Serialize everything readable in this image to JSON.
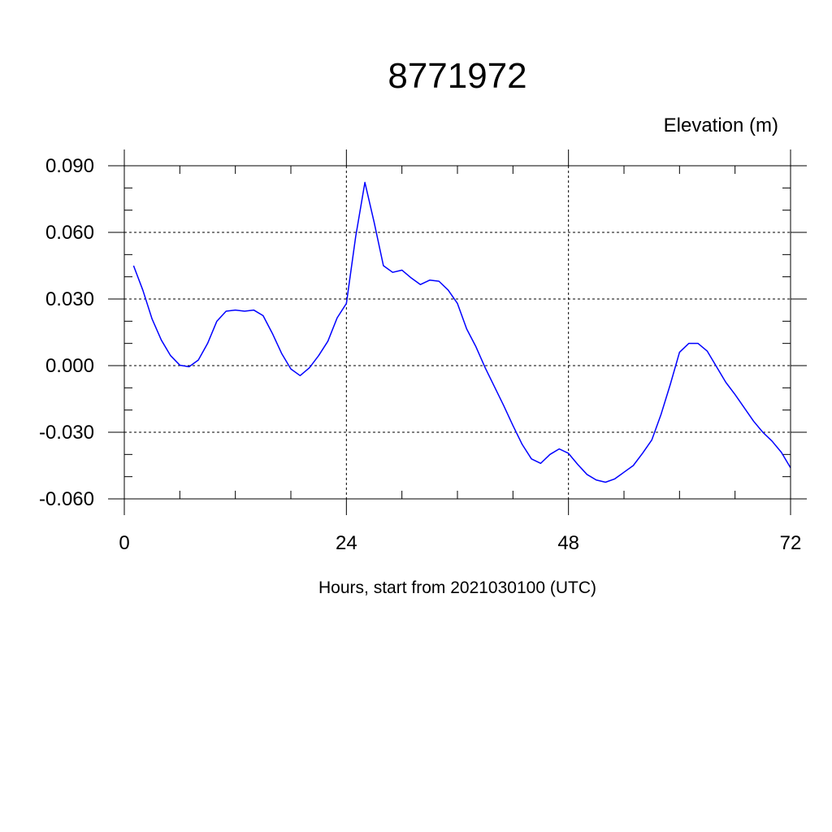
{
  "chart_data": {
    "type": "line",
    "title": "8771972",
    "ylabel": "Elevation (m)",
    "xlabel": "Hours, start from 2021030100 (UTC)",
    "xlim": [
      0,
      72
    ],
    "ylim": [
      -0.06,
      0.09
    ],
    "x_ticks": [
      0,
      24,
      48,
      72
    ],
    "x_tick_labels": [
      "0",
      "24",
      "48",
      "72"
    ],
    "y_ticks": [
      -0.06,
      -0.03,
      0,
      0.03,
      0.06,
      0.09
    ],
    "y_tick_labels": [
      "-0.060",
      "-0.030",
      "0.000",
      "0.030",
      "0.060",
      "0.090"
    ],
    "grid": true,
    "series": [
      {
        "color": "#0000ff",
        "x": [
          1,
          2,
          3,
          4,
          5,
          6,
          7,
          8,
          9,
          10,
          11,
          12,
          13,
          14,
          15,
          16,
          17,
          18,
          19,
          20,
          21,
          22,
          23,
          24,
          25,
          26,
          27,
          28,
          29,
          30,
          31,
          32,
          33,
          34,
          35,
          36,
          37,
          38,
          39,
          40,
          41,
          42,
          43,
          44,
          45,
          46,
          47,
          48,
          49,
          50,
          51,
          52,
          53,
          54,
          55,
          56,
          57,
          58,
          59,
          60,
          61,
          62,
          63,
          64,
          65,
          66,
          67,
          68,
          69,
          70,
          71,
          72
        ],
        "values": [
          0.045,
          0.034,
          0.021,
          0.0115,
          0.0045,
          0.0002,
          -0.0005,
          0.0025,
          0.01,
          0.02,
          0.0245,
          0.025,
          0.0245,
          0.025,
          0.0225,
          0.0145,
          0.0055,
          -0.0015,
          -0.0045,
          -0.001,
          0.0045,
          0.011,
          0.0215,
          0.028,
          0.058,
          0.0825,
          0.0645,
          0.045,
          0.042,
          0.043,
          0.0395,
          0.0365,
          0.0385,
          0.038,
          0.034,
          0.028,
          0.0165,
          0.0085,
          -0.001,
          -0.0095,
          -0.018,
          -0.027,
          -0.0355,
          -0.042,
          -0.044,
          -0.04,
          -0.0375,
          -0.0395,
          -0.0445,
          -0.049,
          -0.0515,
          -0.0525,
          -0.051,
          -0.048,
          -0.045,
          -0.0395,
          -0.0335,
          -0.022,
          -0.0085,
          0.006,
          0.01,
          0.01,
          0.0065,
          -0.0005,
          -0.0075,
          -0.013,
          -0.019,
          -0.025,
          -0.03,
          -0.034,
          -0.039,
          -0.046
        ]
      }
    ]
  }
}
